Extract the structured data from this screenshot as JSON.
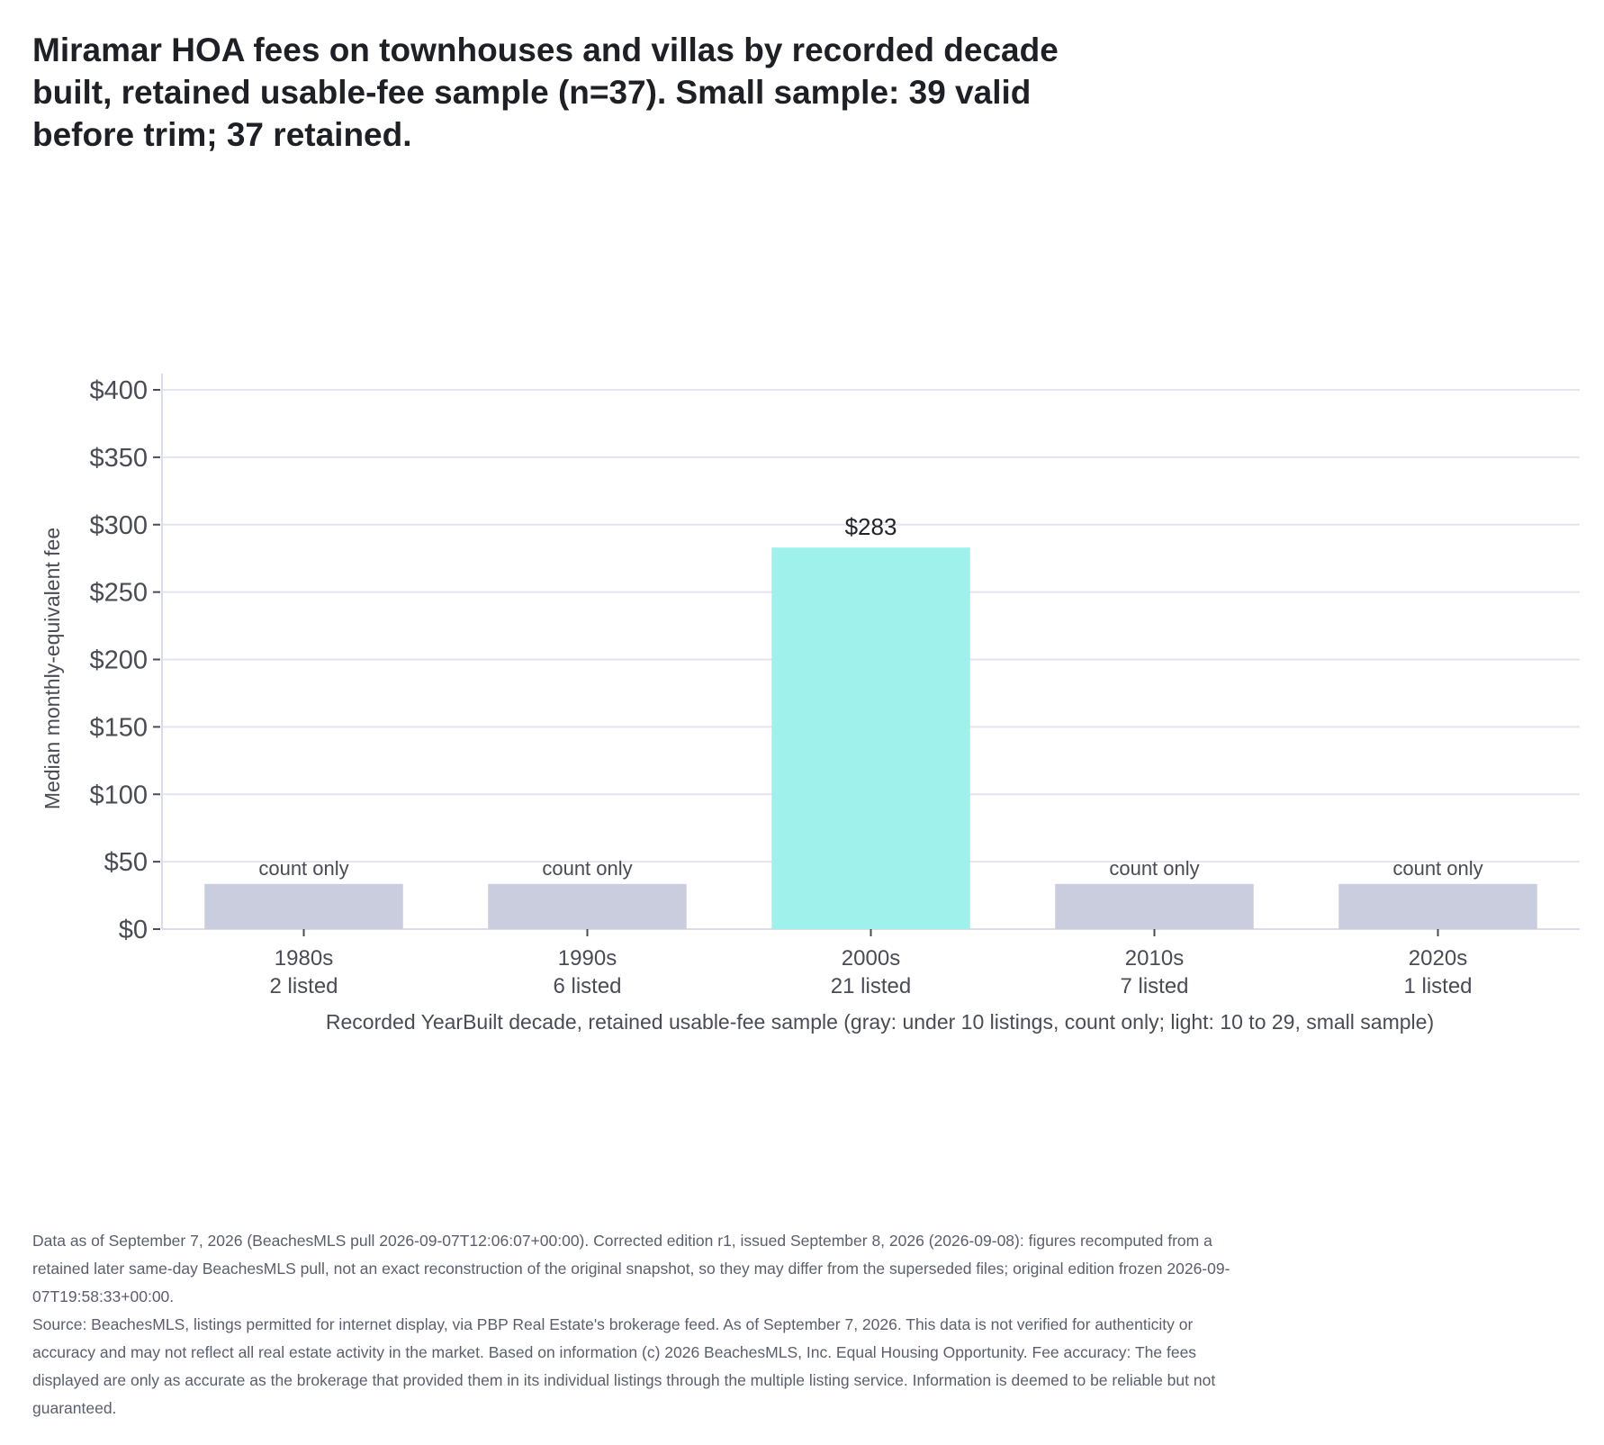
{
  "title": "Miramar HOA fees on townhouses and villas by recorded decade built, retained usable-fee sample (n=37). Small sample: 39 valid before trim; 37 retained.",
  "chart_data": {
    "type": "bar",
    "categories": [
      "1980s",
      "1990s",
      "2000s",
      "2010s",
      "2020s"
    ],
    "counts_label": [
      "2 listed",
      "6 listed",
      "21 listed",
      "7 listed",
      "1 listed"
    ],
    "values": [
      null,
      null,
      283,
      null,
      null
    ],
    "display": [
      "count only",
      "count only",
      "$283",
      "count only",
      "count only"
    ],
    "status": [
      "count-only",
      "count-only",
      "full",
      "count-only",
      "count-only"
    ],
    "ylabel": "Median monthly-equivalent fee",
    "xlabel": "Recorded YearBuilt decade, retained usable-fee sample (gray: under 10 listings, count only; light: 10 to 29, small sample)",
    "ylim": [
      0,
      400
    ],
    "yticks": [
      0,
      50,
      100,
      150,
      200,
      250,
      300,
      350,
      400
    ],
    "ytick_labels": [
      "$0",
      "$50",
      "$100",
      "$150",
      "$200",
      "$250",
      "$300",
      "$350",
      "$400"
    ],
    "grid": true,
    "colors": {
      "full": "#9ff2ec",
      "count-only": "#cacdde",
      "grid": "#e3e4f0",
      "axis": "#dadcec"
    }
  },
  "footnotes": [
    "Data as of September 7, 2026 (BeachesMLS pull 2026-09-07T12:06:07+00:00). Corrected edition r1, issued September 8, 2026 (2026-09-08): figures recomputed from a retained later same-day BeachesMLS pull, not an exact reconstruction of the original snapshot, so they may differ from the superseded files; original edition frozen 2026-09-07T19:58:33+00:00.",
    "Source: BeachesMLS, listings permitted for internet display, via PBP Real Estate's brokerage feed. As of September 7, 2026. This data is not verified for authenticity or accuracy and may not reflect all real estate activity in the market. Based on information (c) 2026 BeachesMLS, Inc. Equal Housing Opportunity. Fee accuracy: The fees displayed are only as accurate as the brokerage that provided them in its individual listings through the multiple listing service. Information is deemed to be reliable but not guaranteed."
  ]
}
